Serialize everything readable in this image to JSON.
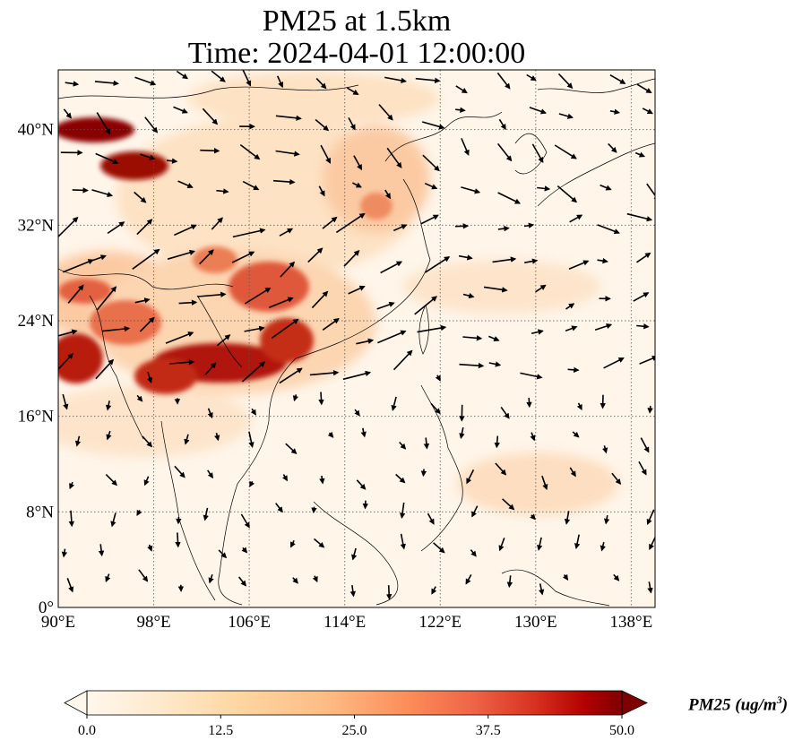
{
  "title": {
    "line1": "PM25 at 1.5km",
    "line2": "Time: 2024-04-01 12:00:00"
  },
  "map": {
    "variable": "PM25",
    "level": "1.5km",
    "time": "2024-04-01 12:00:00",
    "lon_range": [
      90,
      140
    ],
    "lat_range": [
      0,
      45
    ],
    "lon_ticks": [
      "90°E",
      "98°E",
      "106°E",
      "114°E",
      "122°E",
      "130°E",
      "138°E"
    ],
    "lat_ticks": [
      "0°",
      "8°N",
      "16°N",
      "24°N",
      "32°N",
      "40°N"
    ],
    "gridlines": true,
    "colormap": "OrRd",
    "overlay": "wind vectors (arrows)"
  },
  "colorbar": {
    "ticks": [
      "0.0",
      "12.5",
      "25.0",
      "37.5",
      "50.0"
    ],
    "min": 0,
    "max": 50,
    "extend": "both",
    "label_main": "PM25 (ug/m",
    "label_sup": "3",
    "label_end": ")",
    "colors": [
      "#fff7ec",
      "#fee8c8",
      "#fdd49e",
      "#fdbb84",
      "#fc8d59",
      "#ef6548",
      "#d7301f",
      "#b30000",
      "#7f0000"
    ]
  }
}
